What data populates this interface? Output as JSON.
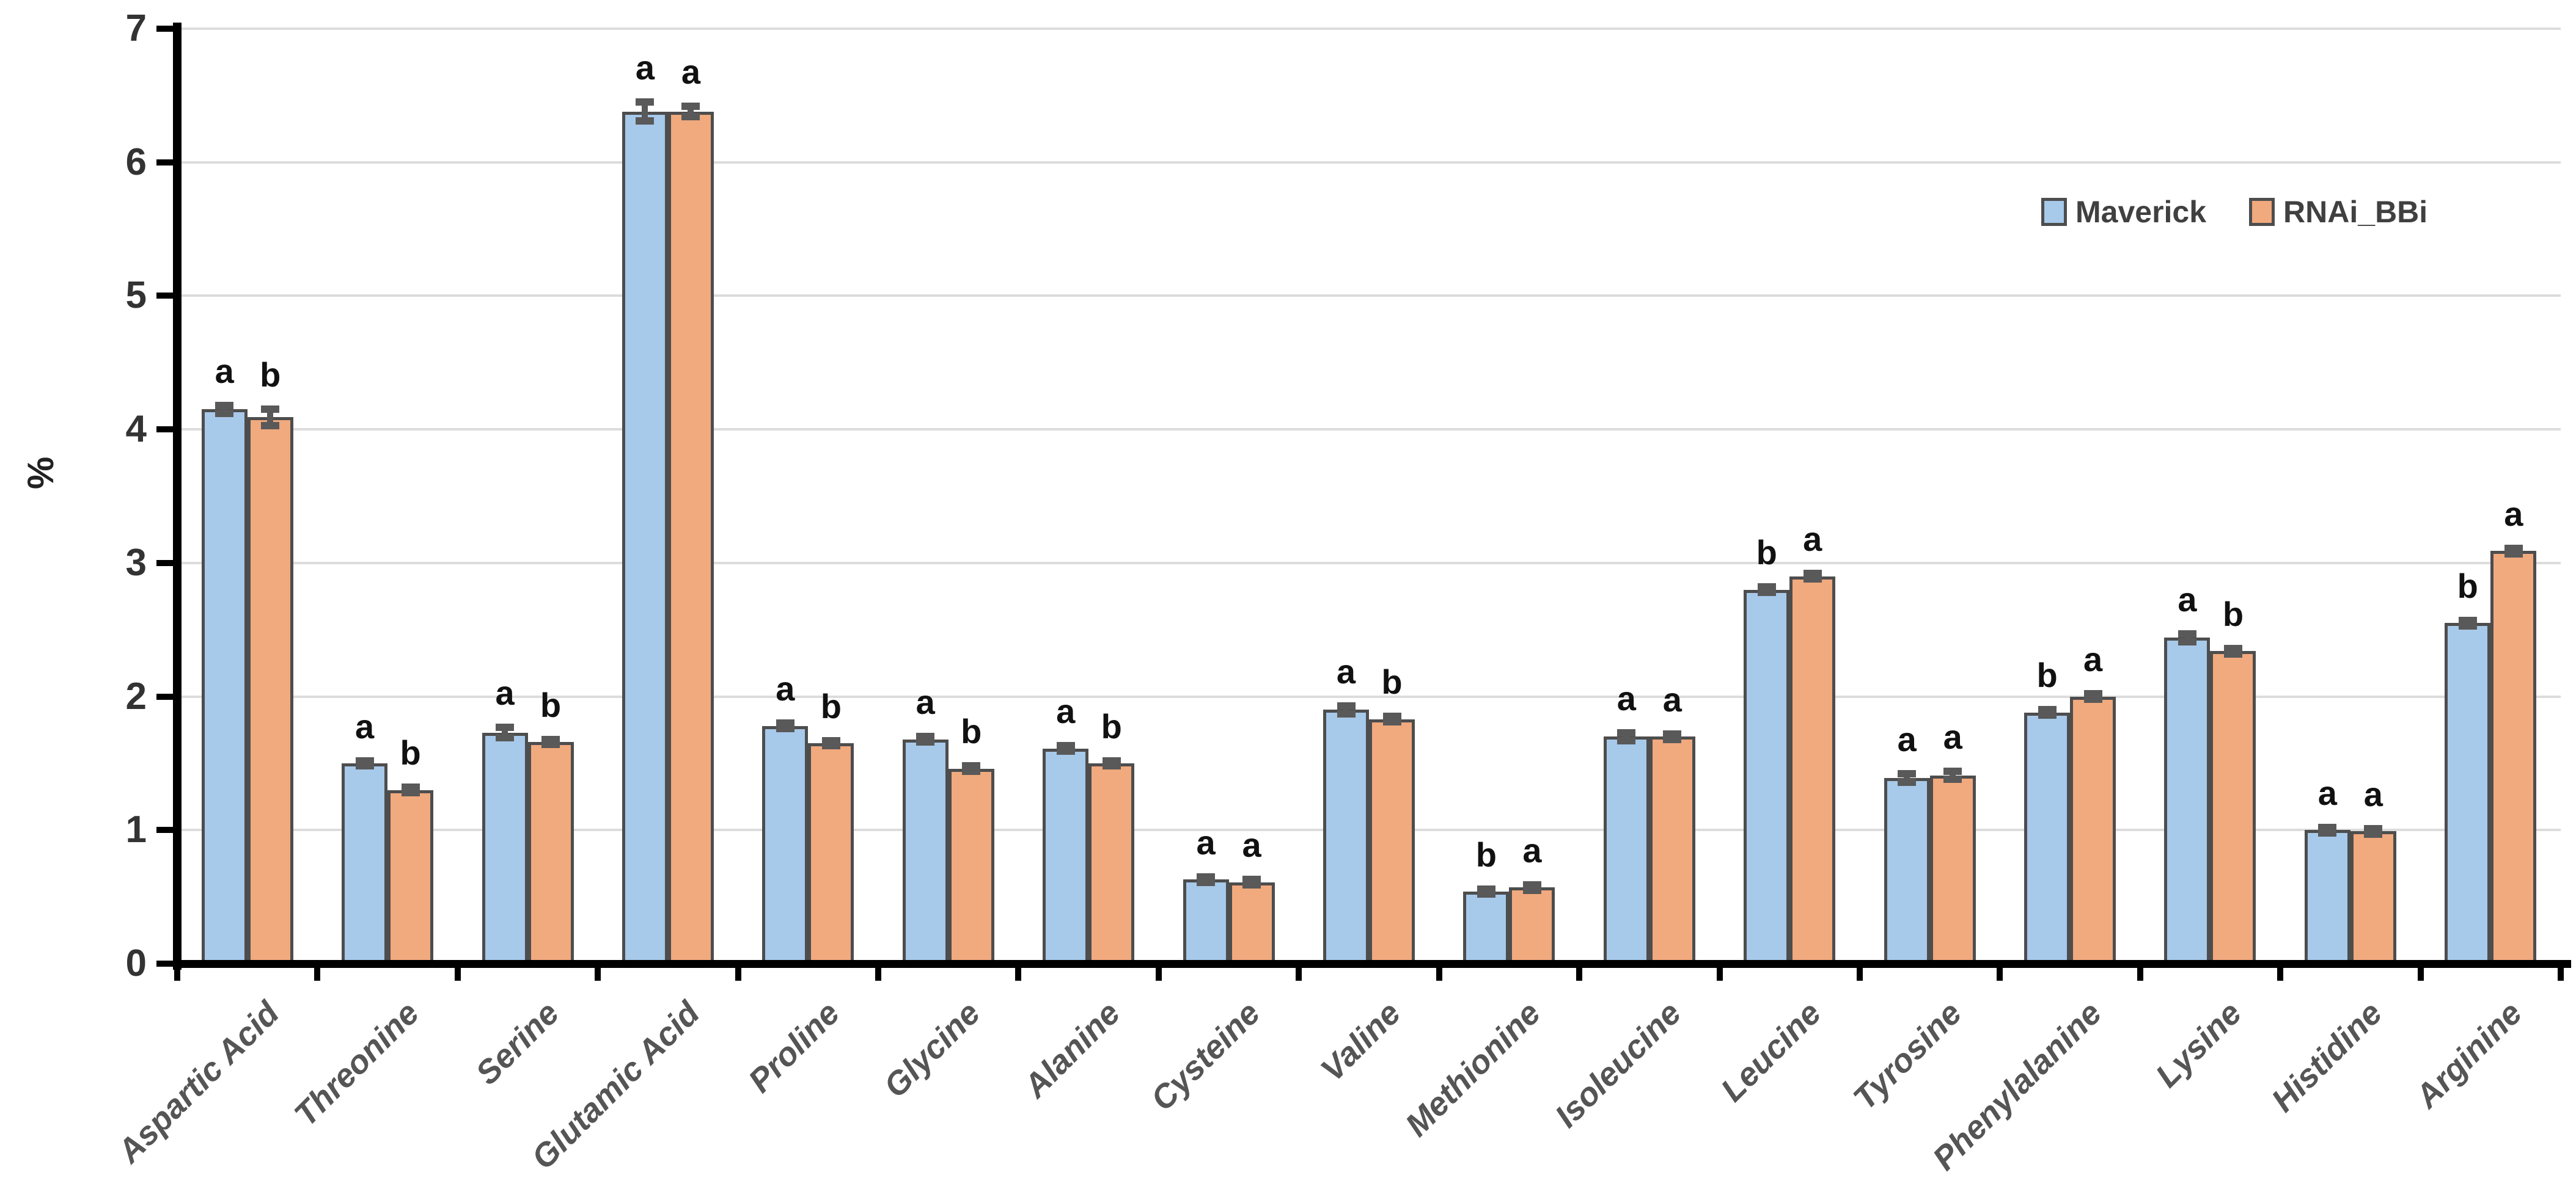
{
  "chart_data": {
    "type": "bar",
    "title": "",
    "xlabel": "",
    "ylabel": "%",
    "ylim": [
      0,
      7
    ],
    "yticks": [
      0,
      1,
      2,
      3,
      4,
      5,
      6,
      7
    ],
    "grid": true,
    "legend_position": "top-right",
    "categories": [
      "Aspartic Acid",
      "Threonine",
      "Serine",
      "Glutamic Acid",
      "Proline",
      "Glycine",
      "Alanine",
      "Cysteine",
      "Valine",
      "Methionine",
      "Isoleucine",
      "Leucine",
      "Tyrosine",
      "Phenylalanine",
      "Lysine",
      "Histidine",
      "Arginine"
    ],
    "series": [
      {
        "name": "Maverick",
        "color": "#a7c9ea",
        "values": [
          4.15,
          1.5,
          1.73,
          6.38,
          1.78,
          1.68,
          1.61,
          0.63,
          1.9,
          0.54,
          1.7,
          2.8,
          1.39,
          1.88,
          2.44,
          1.0,
          2.55
        ],
        "errors": [
          0.03,
          0.02,
          0.04,
          0.07,
          0.02,
          0.02,
          0.02,
          0.02,
          0.03,
          0.02,
          0.03,
          0.02,
          0.03,
          0.02,
          0.03,
          0.02,
          0.02
        ],
        "letters": [
          "a",
          "a",
          "a",
          "a",
          "a",
          "a",
          "a",
          "a",
          "a",
          "b",
          "a",
          "b",
          "a",
          "b",
          "a",
          "a",
          "b"
        ]
      },
      {
        "name": "RNAi_BBi",
        "color": "#f1a97e",
        "values": [
          4.09,
          1.3,
          1.66,
          6.38,
          1.65,
          1.46,
          1.5,
          0.61,
          1.83,
          0.57,
          1.7,
          2.9,
          1.41,
          2.0,
          2.34,
          0.99,
          3.09
        ],
        "errors": [
          0.06,
          0.02,
          0.02,
          0.04,
          0.02,
          0.02,
          0.02,
          0.02,
          0.02,
          0.02,
          0.02,
          0.02,
          0.03,
          0.02,
          0.02,
          0.02,
          0.02
        ],
        "letters": [
          "b",
          "b",
          "b",
          "a",
          "b",
          "b",
          "b",
          "a",
          "b",
          "a",
          "a",
          "a",
          "a",
          "a",
          "b",
          "a",
          "a"
        ]
      }
    ]
  },
  "legend": {
    "items": [
      {
        "label": "Maverick",
        "color": "#a7c9ea"
      },
      {
        "label": "RNAi_BBi",
        "color": "#f1a97e"
      }
    ]
  }
}
